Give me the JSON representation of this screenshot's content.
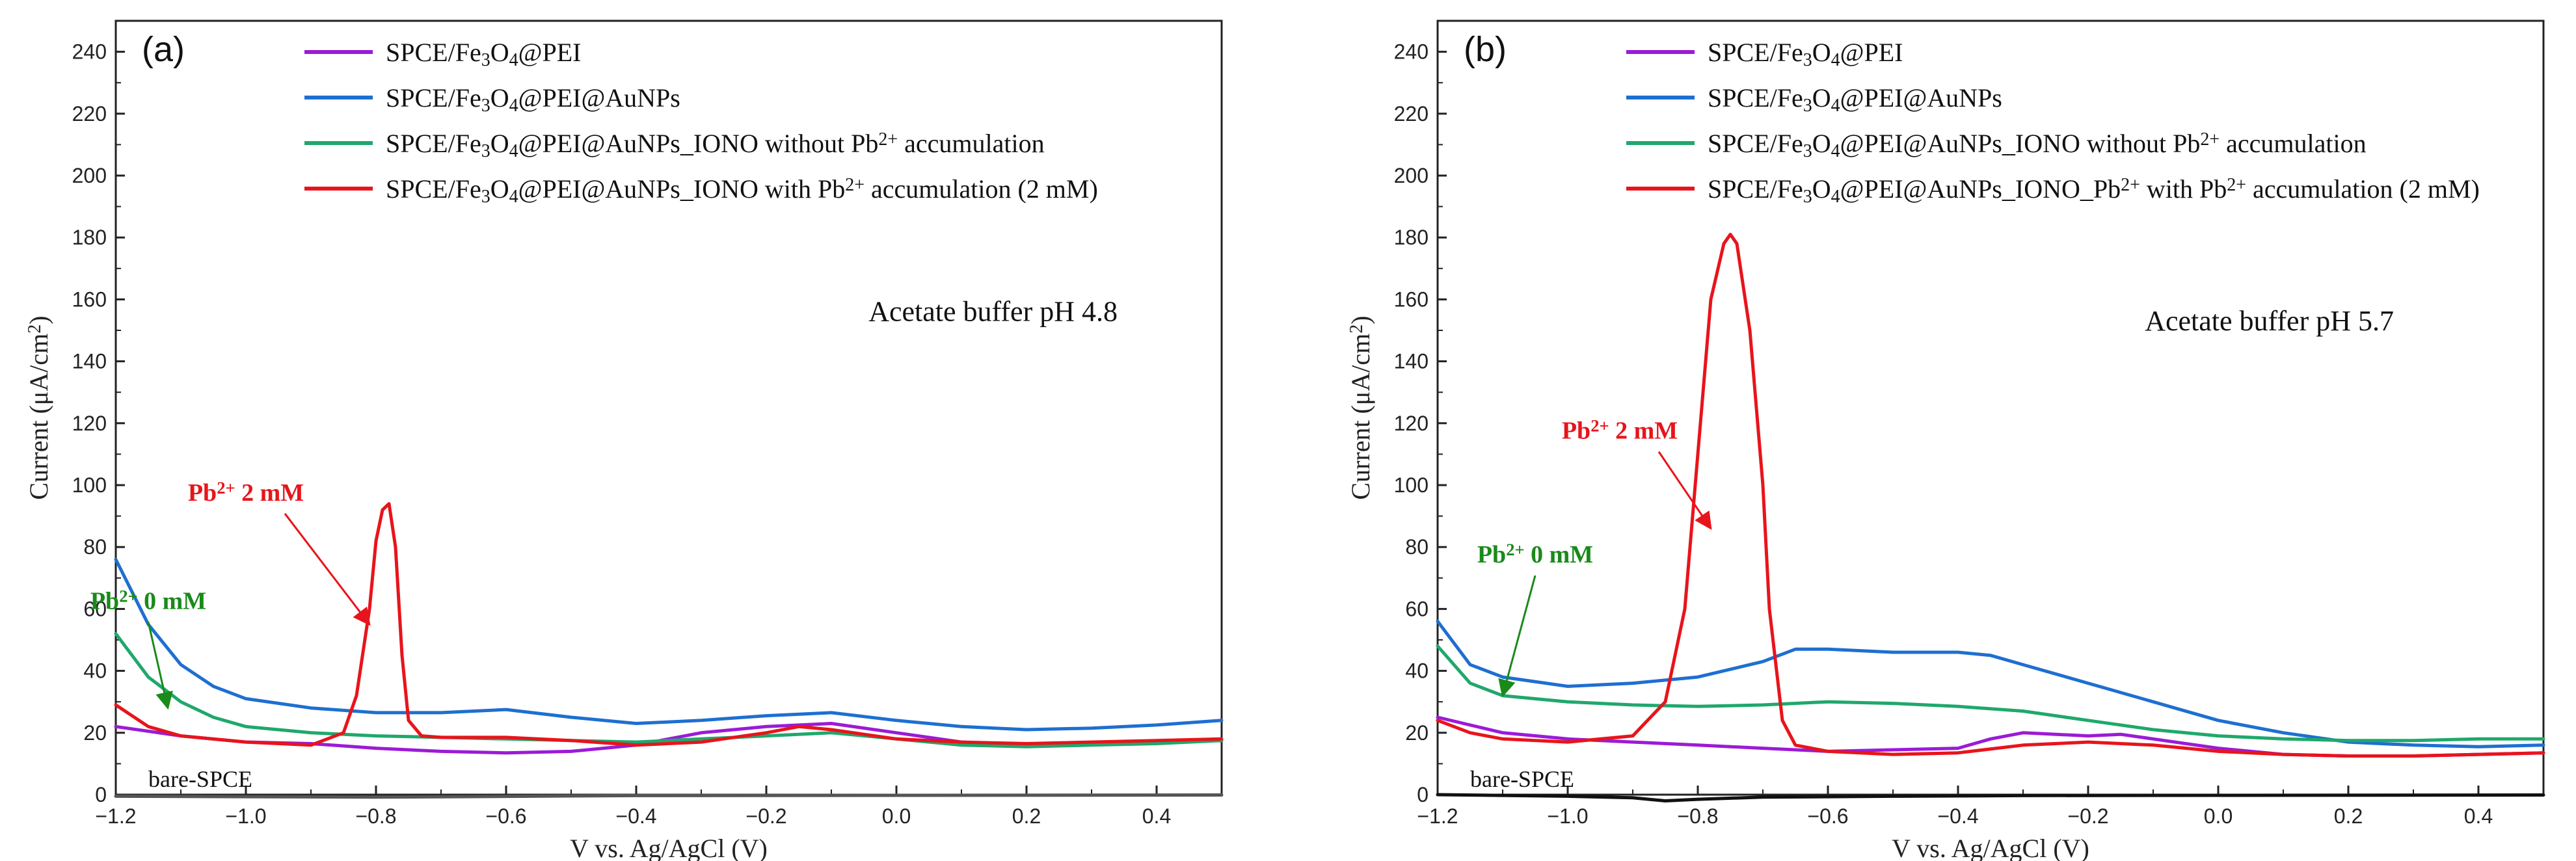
{
  "chart_data": [
    {
      "type": "line",
      "panel_label": "(a)",
      "xlabel": "V vs. Ag/AgCl (V)",
      "ylabel": "Current (μA/cm²)",
      "xlim": [
        -1.2,
        0.5
      ],
      "ylim": [
        0,
        250
      ],
      "xticks": [
        "−1.2",
        "−1.0",
        "−0.8",
        "−0.6",
        "−0.4",
        "−0.2",
        "0.0",
        "0.2",
        "0.4"
      ],
      "yticks": [
        "0",
        "20",
        "40",
        "60",
        "80",
        "100",
        "120",
        "140",
        "160",
        "180",
        "200",
        "220",
        "240"
      ],
      "condition": "Acetate buffer pH 4.8",
      "baseline_label": "bare-SPCE",
      "annotations": [
        {
          "label": "Pb²⁺ 2 mM",
          "color": "#e8141b",
          "text_at": [
            -1.0,
            95
          ],
          "arrow_to": [
            -0.81,
            55
          ]
        },
        {
          "label": "Pb²⁺ 0 mM",
          "color": "#1a8a1a",
          "text_at": [
            -1.15,
            60
          ],
          "arrow_to": [
            -1.12,
            28
          ]
        }
      ],
      "series": [
        {
          "name": "SPCE/Fe₃O₄@PEI",
          "color": "#9b1bd6",
          "x": [
            -1.2,
            -1.1,
            -1.0,
            -0.9,
            -0.8,
            -0.7,
            -0.6,
            -0.5,
            -0.4,
            -0.3,
            -0.2,
            -0.1,
            0.0,
            0.1,
            0.2,
            0.3,
            0.4,
            0.5
          ],
          "y": [
            22,
            19,
            17,
            16.5,
            15,
            14,
            13.5,
            14,
            16,
            20,
            22,
            23,
            20,
            17,
            16,
            16.5,
            17,
            17.5
          ]
        },
        {
          "name": "SPCE/Fe₃O₄@PEI@AuNPs",
          "color": "#1e6fd0",
          "x": [
            -1.2,
            -1.15,
            -1.1,
            -1.05,
            -1.0,
            -0.9,
            -0.8,
            -0.7,
            -0.6,
            -0.5,
            -0.4,
            -0.3,
            -0.2,
            -0.1,
            0.0,
            0.1,
            0.2,
            0.3,
            0.4,
            0.5
          ],
          "y": [
            76,
            55,
            42,
            35,
            31,
            28,
            26.5,
            26.5,
            27.5,
            25,
            23,
            24,
            25.5,
            26.5,
            24,
            22,
            21,
            21.5,
            22.5,
            24
          ]
        },
        {
          "name": "SPCE/Fe₃O₄@PEI@AuNPs_IONO without Pb²⁺ accumulation",
          "color": "#1fa86c",
          "x": [
            -1.2,
            -1.15,
            -1.1,
            -1.05,
            -1.0,
            -0.9,
            -0.8,
            -0.7,
            -0.6,
            -0.5,
            -0.4,
            -0.3,
            -0.2,
            -0.1,
            0.0,
            0.1,
            0.2,
            0.3,
            0.4,
            0.5
          ],
          "y": [
            52,
            38,
            30,
            25,
            22,
            20,
            19,
            18.5,
            18,
            17.5,
            17,
            18,
            19,
            20,
            18,
            16,
            15.5,
            16,
            16.5,
            17.5
          ]
        },
        {
          "name": "SPCE/Fe₃O₄@PEI@AuNPs_IONO with Pb²⁺ accumulation (2 mM)",
          "color": "#e8141b",
          "x": [
            -1.2,
            -1.15,
            -1.1,
            -1.0,
            -0.9,
            -0.85,
            -0.83,
            -0.81,
            -0.8,
            -0.79,
            -0.78,
            -0.77,
            -0.76,
            -0.75,
            -0.73,
            -0.7,
            -0.6,
            -0.5,
            -0.4,
            -0.3,
            -0.2,
            -0.15,
            -0.1,
            0.0,
            0.1,
            0.2,
            0.3,
            0.4,
            0.5
          ],
          "y": [
            29,
            22,
            19,
            17,
            16,
            20,
            32,
            60,
            82,
            92,
            94,
            80,
            45,
            24,
            19,
            18.5,
            18.5,
            17.5,
            16,
            17,
            20,
            22,
            21,
            18,
            17,
            16.5,
            17,
            17.5,
            18
          ]
        },
        {
          "name": "bare-SPCE",
          "color": "#555555",
          "legend": false,
          "x": [
            -1.2,
            -0.8,
            -0.4,
            0.0,
            0.5
          ],
          "y": [
            -0.5,
            -0.8,
            -0.3,
            -0.2,
            -0.1
          ]
        }
      ]
    },
    {
      "type": "line",
      "panel_label": "(b)",
      "xlabel": "V vs. Ag/AgCl (V)",
      "ylabel": "Current (μA/cm²)",
      "xlim": [
        -1.2,
        0.5
      ],
      "ylim": [
        0,
        250
      ],
      "xticks": [
        "−1.2",
        "−1.0",
        "−0.8",
        "−0.6",
        "−0.4",
        "−0.2",
        "0.0",
        "0.2",
        "0.4"
      ],
      "yticks": [
        "0",
        "20",
        "40",
        "60",
        "80",
        "100",
        "120",
        "140",
        "160",
        "180",
        "200",
        "220",
        "240"
      ],
      "condition": "Acetate buffer pH 5.7",
      "baseline_label": "bare-SPCE",
      "annotations": [
        {
          "label": "Pb²⁺ 2 mM",
          "color": "#e8141b",
          "text_at": [
            -0.92,
            115
          ],
          "arrow_to": [
            -0.78,
            86
          ]
        },
        {
          "label": "Pb²⁺ 0 mM",
          "color": "#1a8a1a",
          "text_at": [
            -1.05,
            75
          ],
          "arrow_to": [
            -1.1,
            32
          ]
        }
      ],
      "series": [
        {
          "name": "SPCE/Fe₃O₄@PEI",
          "color": "#9b1bd6",
          "x": [
            -1.2,
            -1.1,
            -1.0,
            -0.9,
            -0.8,
            -0.7,
            -0.6,
            -0.5,
            -0.4,
            -0.35,
            -0.3,
            -0.2,
            -0.15,
            -0.1,
            0.0,
            0.1,
            0.2,
            0.3,
            0.4,
            0.5
          ],
          "y": [
            25,
            20,
            18,
            17,
            16,
            15,
            14,
            14.5,
            15,
            18,
            20,
            19,
            19.5,
            18,
            15,
            13,
            12.5,
            12.5,
            13,
            13.5
          ]
        },
        {
          "name": "SPCE/Fe₃O₄@PEI@AuNPs",
          "color": "#1e6fd0",
          "x": [
            -1.2,
            -1.15,
            -1.1,
            -1.0,
            -0.9,
            -0.8,
            -0.7,
            -0.65,
            -0.6,
            -0.5,
            -0.4,
            -0.35,
            -0.3,
            -0.2,
            -0.1,
            0.0,
            0.1,
            0.2,
            0.3,
            0.4,
            0.5
          ],
          "y": [
            56,
            42,
            38,
            35,
            36,
            38,
            43,
            47,
            47,
            46,
            46,
            45,
            42,
            36,
            30,
            24,
            20,
            17,
            16,
            15.5,
            16
          ]
        },
        {
          "name": "SPCE/Fe₃O₄@PEI@AuNPs_IONO without Pb²⁺ accumulation",
          "color": "#1fa86c",
          "x": [
            -1.2,
            -1.15,
            -1.1,
            -1.0,
            -0.9,
            -0.8,
            -0.7,
            -0.6,
            -0.5,
            -0.4,
            -0.3,
            -0.2,
            -0.1,
            0.0,
            0.1,
            0.2,
            0.3,
            0.4,
            0.5
          ],
          "y": [
            48,
            36,
            32,
            30,
            29,
            28.5,
            29,
            30,
            29.5,
            28.5,
            27,
            24,
            21,
            19,
            18,
            17.5,
            17.5,
            18,
            18
          ]
        },
        {
          "name": "SPCE/Fe₃O₄@PEI@AuNPs_IONO_Pb²⁺ with Pb²⁺ accumulation (2 mM)",
          "color": "#e8141b",
          "x": [
            -1.2,
            -1.15,
            -1.1,
            -1.0,
            -0.9,
            -0.85,
            -0.82,
            -0.8,
            -0.78,
            -0.76,
            -0.75,
            -0.74,
            -0.72,
            -0.7,
            -0.69,
            -0.67,
            -0.65,
            -0.6,
            -0.5,
            -0.4,
            -0.3,
            -0.2,
            -0.1,
            0.0,
            0.1,
            0.2,
            0.3,
            0.4,
            0.5
          ],
          "y": [
            24,
            20,
            18,
            17,
            19,
            30,
            60,
            110,
            160,
            178,
            181,
            178,
            150,
            100,
            60,
            24,
            16,
            14,
            13,
            13.5,
            16,
            17,
            16,
            14,
            13,
            12.5,
            12.5,
            13,
            13.5
          ]
        },
        {
          "name": "bare-SPCE",
          "color": "#111111",
          "legend": false,
          "x": [
            -1.2,
            -1.0,
            -0.9,
            -0.85,
            -0.8,
            -0.7,
            -0.5,
            -0.3,
            0.0,
            0.5
          ],
          "y": [
            0,
            -0.5,
            -1,
            -2,
            -1.5,
            -0.8,
            -0.5,
            -0.3,
            -0.2,
            -0.1
          ]
        }
      ]
    }
  ]
}
